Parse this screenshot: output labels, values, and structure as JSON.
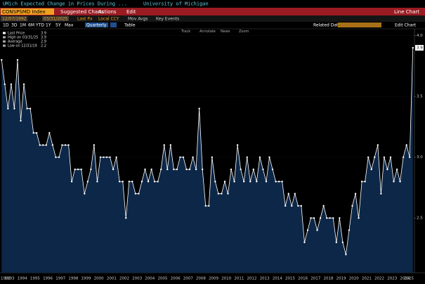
{
  "ui": {
    "security": {
      "description": "UMich Expected Change in Prices During ...",
      "source": "University of Michigan"
    },
    "menu": {
      "ticker": "CONSPSMD Index",
      "items": [
        "Suggested Charts",
        "Actions",
        "Edit"
      ],
      "chart_kind": "Line Chart"
    },
    "settings": {
      "start_date": "12/07/1992",
      "end_date": "03/31/2025",
      "items": [
        "Last Px",
        "Local CCY",
        "Mov Avgs",
        "Key Events"
      ]
    },
    "ranges": [
      "1D",
      "3D",
      "1M",
      "6M",
      "YTD",
      "1Y",
      "5Y",
      "Max"
    ],
    "frequency": "Quarterly",
    "table": "Table",
    "related": "Related Dat",
    "edit_chart": "Edit Chart",
    "chart_tools": [
      "Track",
      "Annotate",
      "News",
      "Zoom"
    ]
  },
  "chart_data": {
    "type": "line",
    "legend": [
      {
        "label": "Last Price",
        "value": 3.9
      },
      {
        "label": "High on 03/31/25",
        "value": 3.9
      },
      {
        "label": "Average",
        "value": 2.9
      },
      {
        "label": "Low on 12/31/19",
        "value": 2.2
      }
    ],
    "categories": [
      "1992",
      null,
      "1993",
      null,
      null,
      null,
      "1994",
      null,
      null,
      null,
      "1995",
      null,
      null,
      null,
      "1996",
      null,
      null,
      null,
      "1997",
      null,
      null,
      null,
      "1998",
      null,
      null,
      null,
      "1999",
      null,
      null,
      null,
      "2000",
      null,
      null,
      null,
      "2001",
      null,
      null,
      null,
      "2002",
      null,
      null,
      null,
      "2003",
      null,
      null,
      null,
      "2004",
      null,
      null,
      null,
      "2005",
      null,
      null,
      null,
      "2006",
      null,
      null,
      null,
      "2007",
      null,
      null,
      null,
      "2008",
      null,
      null,
      null,
      "2009",
      null,
      null,
      null,
      "2010",
      null,
      null,
      null,
      "2011",
      null,
      null,
      null,
      "2012",
      null,
      null,
      null,
      "2013",
      null,
      null,
      null,
      "2014",
      null,
      null,
      null,
      "2015",
      null,
      null,
      null,
      "2016",
      null,
      null,
      null,
      "2017",
      null,
      null,
      null,
      "2018",
      null,
      null,
      null,
      "2019",
      null,
      null,
      null,
      "2020",
      null,
      null,
      null,
      "2021",
      null,
      null,
      null,
      "2022",
      null,
      null,
      null,
      "2023",
      null,
      null,
      null,
      "2024",
      null,
      null,
      "2025"
    ],
    "values": [
      3.8,
      3.6,
      3.4,
      3.6,
      3.4,
      3.8,
      3.3,
      3.6,
      3.4,
      3.4,
      3.2,
      3.2,
      3.1,
      3.1,
      3.1,
      3.2,
      3.1,
      3.0,
      3.0,
      3.1,
      3.1,
      3.1,
      2.8,
      2.9,
      2.9,
      2.9,
      2.7,
      2.8,
      2.9,
      3.1,
      2.8,
      3.0,
      3.0,
      3.0,
      3.0,
      2.9,
      3.0,
      2.8,
      2.8,
      2.5,
      2.8,
      2.8,
      2.7,
      2.7,
      2.8,
      2.9,
      2.8,
      2.9,
      2.8,
      2.8,
      2.9,
      3.1,
      2.9,
      3.1,
      2.9,
      2.9,
      3.0,
      3.0,
      2.9,
      2.9,
      3.0,
      2.9,
      3.4,
      2.9,
      2.6,
      2.6,
      3.0,
      2.8,
      2.7,
      2.7,
      2.8,
      2.7,
      2.9,
      2.8,
      3.1,
      2.9,
      2.8,
      3.0,
      2.8,
      2.9,
      2.8,
      3.0,
      2.9,
      2.8,
      3.0,
      2.9,
      2.8,
      2.8,
      2.8,
      2.6,
      2.7,
      2.6,
      2.7,
      2.6,
      2.6,
      2.3,
      2.4,
      2.5,
      2.5,
      2.4,
      2.5,
      2.6,
      2.5,
      2.5,
      2.5,
      2.3,
      2.5,
      2.3,
      2.2,
      2.4,
      2.6,
      2.7,
      2.5,
      2.8,
      2.8,
      3.0,
      2.9,
      3.0,
      3.1,
      2.7,
      3.0,
      2.9,
      3.0,
      2.8,
      2.9,
      2.8,
      3.0,
      3.1,
      3.0,
      3.9
    ],
    "color": "#ffffff",
    "area_color": "#0d2748",
    "ylim": [
      2.05,
      4.05
    ],
    "yticks": [
      2.5,
      {
        "value": 3,
        "label": "3.0"
      },
      3.5,
      {
        "value": 4,
        "label": "4.0"
      }
    ],
    "grid": true
  }
}
